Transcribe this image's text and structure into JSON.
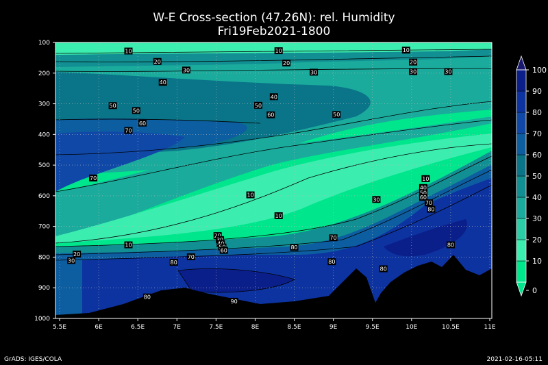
{
  "title": "W-E Cross-section (47.26N): rel. Humidity",
  "subtitle": "Fri19Feb2021-1800",
  "footer_left": "GrADS: IGES/COLA",
  "footer_right": "2021-02-16-05:11",
  "chart_data": {
    "type": "heatmap",
    "title": "W-E Cross-section (47.26N): rel. Humidity",
    "subtitle": "Fri19Feb2021-1800",
    "x_ticks": [
      "5.5E",
      "6E",
      "6.5E",
      "7E",
      "7.5E",
      "8E",
      "8.5E",
      "9E",
      "9.5E",
      "10E",
      "10.5E",
      "11E"
    ],
    "x_values": [
      5.5,
      6,
      6.5,
      7,
      7.5,
      8,
      8.5,
      9,
      9.5,
      10,
      10.5,
      11
    ],
    "xlim": [
      5.5,
      11
    ],
    "y_ticks": [
      "100",
      "200",
      "300",
      "400",
      "500",
      "600",
      "700",
      "800",
      "900",
      "1000"
    ],
    "y_values": [
      100,
      200,
      300,
      400,
      500,
      600,
      700,
      800,
      900,
      1000
    ],
    "ylim": [
      100,
      1000
    ],
    "grid": true,
    "colorbar": {
      "levels": [
        "0",
        "10",
        "20",
        "30",
        "40",
        "50",
        "60",
        "70",
        "80",
        "90",
        "100"
      ],
      "colors": [
        "#00e68c",
        "#3cedb0",
        "#2ccca6",
        "#1aab9c",
        "#118f92",
        "#0a7488",
        "#0d5ea0",
        "#1048a8",
        "#0d33a0",
        "#0a1f8a",
        "#191970"
      ]
    },
    "contour_labels": [
      {
        "text": "10",
        "x": 6.38,
        "p": 128
      },
      {
        "text": "20",
        "x": 6.75,
        "p": 162
      },
      {
        "text": "30",
        "x": 7.12,
        "p": 190
      },
      {
        "text": "40",
        "x": 6.82,
        "p": 230
      },
      {
        "text": "50",
        "x": 6.18,
        "p": 306
      },
      {
        "text": "50",
        "x": 6.48,
        "p": 322
      },
      {
        "text": "60",
        "x": 6.56,
        "p": 363
      },
      {
        "text": "70",
        "x": 6.38,
        "p": 387
      },
      {
        "text": "70",
        "x": 5.93,
        "p": 542
      },
      {
        "text": "10",
        "x": 8.3,
        "p": 127
      },
      {
        "text": "20",
        "x": 8.4,
        "p": 167
      },
      {
        "text": "30",
        "x": 8.75,
        "p": 197
      },
      {
        "text": "40",
        "x": 8.24,
        "p": 277
      },
      {
        "text": "50",
        "x": 8.04,
        "p": 305
      },
      {
        "text": "60",
        "x": 8.2,
        "p": 336
      },
      {
        "text": "50",
        "x": 9.04,
        "p": 335
      },
      {
        "text": "10",
        "x": 9.93,
        "p": 125
      },
      {
        "text": "20",
        "x": 10.02,
        "p": 164
      },
      {
        "text": "30",
        "x": 10.02,
        "p": 195
      },
      {
        "text": "30",
        "x": 10.47,
        "p": 195
      },
      {
        "text": "10",
        "x": 7.94,
        "p": 597
      },
      {
        "text": "10",
        "x": 8.3,
        "p": 665
      },
      {
        "text": "10",
        "x": 10.18,
        "p": 544
      },
      {
        "text": "40",
        "x": 10.15,
        "p": 573
      },
      {
        "text": "50",
        "x": 10.15,
        "p": 590
      },
      {
        "text": "60",
        "x": 10.15,
        "p": 605
      },
      {
        "text": "70",
        "x": 10.22,
        "p": 623
      },
      {
        "text": "80",
        "x": 10.25,
        "p": 644
      },
      {
        "text": "30",
        "x": 9.55,
        "p": 612
      },
      {
        "text": "70",
        "x": 9.0,
        "p": 737
      },
      {
        "text": "80",
        "x": 8.98,
        "p": 815
      },
      {
        "text": "80",
        "x": 8.5,
        "p": 768
      },
      {
        "text": "80",
        "x": 10.5,
        "p": 760
      },
      {
        "text": "80",
        "x": 9.64,
        "p": 838
      },
      {
        "text": "10",
        "x": 6.38,
        "p": 760
      },
      {
        "text": "20",
        "x": 5.72,
        "p": 790
      },
      {
        "text": "30",
        "x": 5.65,
        "p": 811
      },
      {
        "text": "70",
        "x": 7.18,
        "p": 799
      },
      {
        "text": "80",
        "x": 6.96,
        "p": 817
      },
      {
        "text": "80",
        "x": 6.62,
        "p": 930
      },
      {
        "text": "90",
        "x": 7.73,
        "p": 944
      },
      {
        "text": "20",
        "x": 7.52,
        "p": 730
      },
      {
        "text": "30",
        "x": 7.55,
        "p": 743
      },
      {
        "text": "40",
        "x": 7.56,
        "p": 756
      },
      {
        "text": "50",
        "x": 7.58,
        "p": 767
      },
      {
        "text": "60",
        "x": 7.6,
        "p": 778
      }
    ]
  }
}
